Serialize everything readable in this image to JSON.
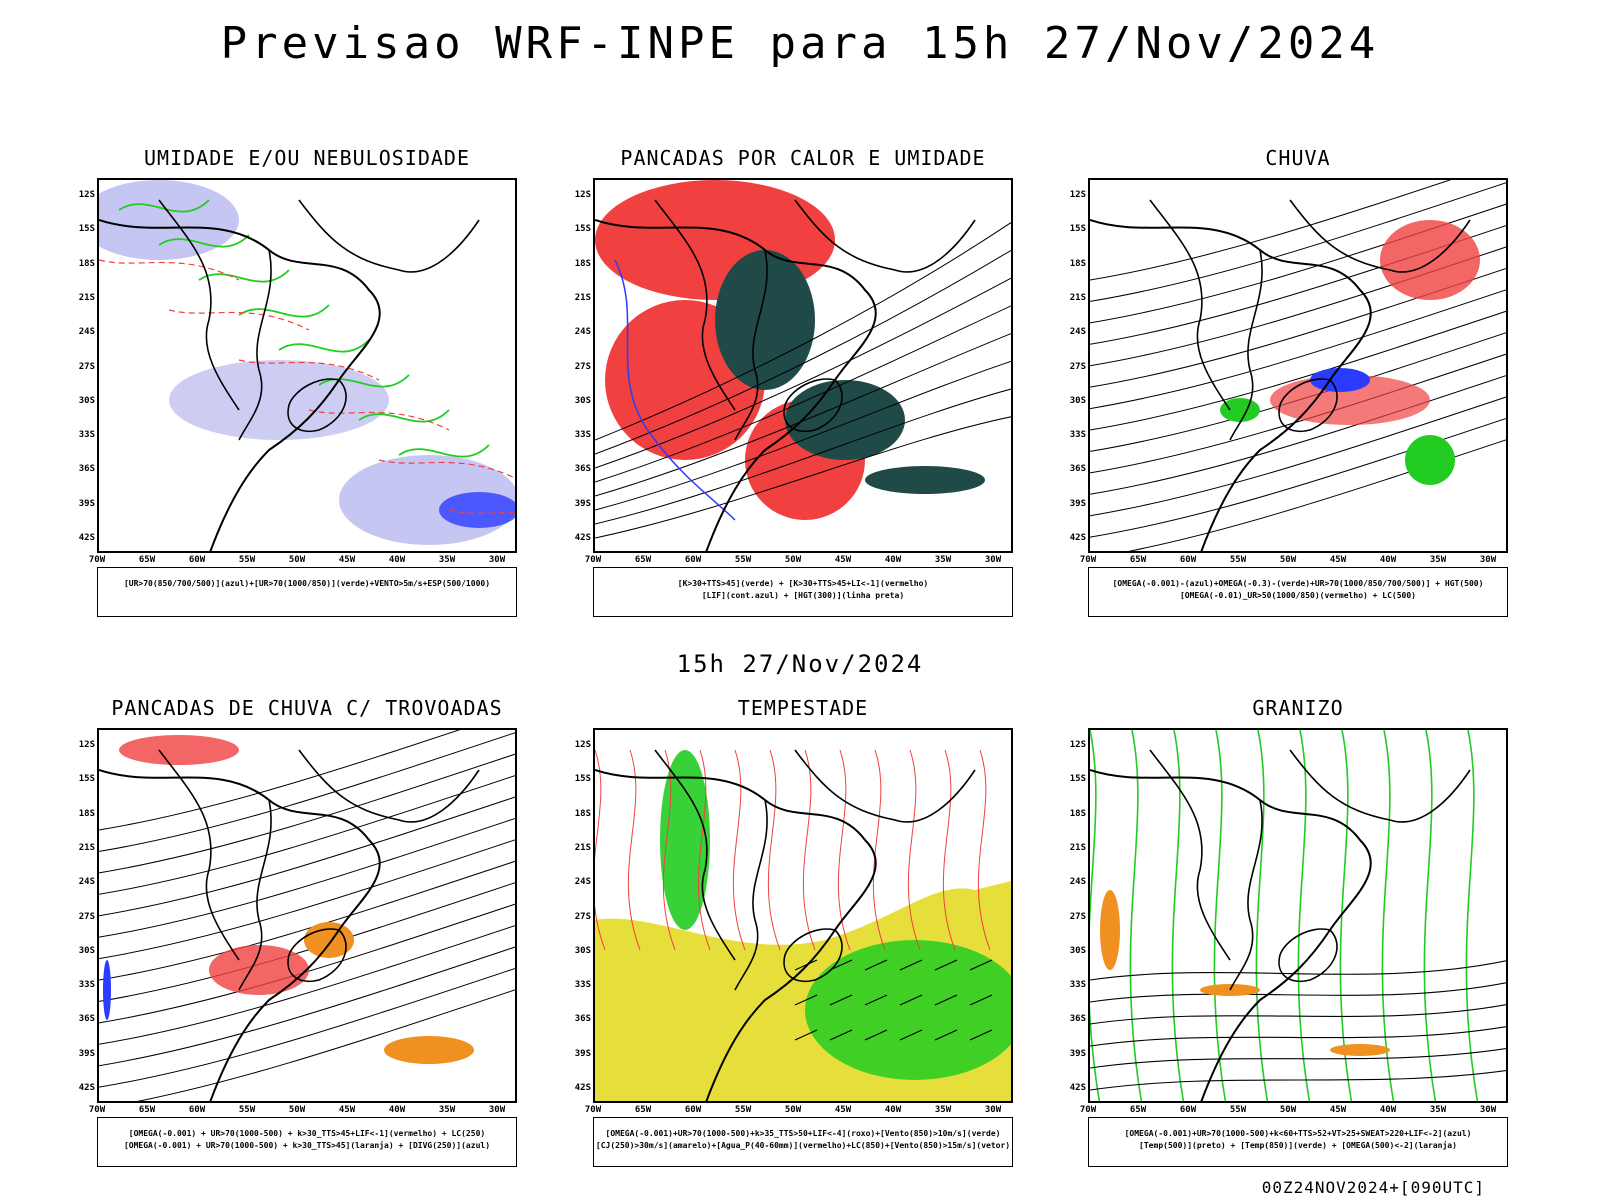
{
  "header": {
    "title": "Previsao WRF-INPE  para 15h 27/Nov/2024"
  },
  "mid_title": "15h 27/Nov/2024",
  "footer": "00Z24NOV2024+[090UTC]",
  "axes": {
    "lat_labels": [
      "12S",
      "15S",
      "18S",
      "21S",
      "24S",
      "27S",
      "30S",
      "33S",
      "36S",
      "39S",
      "42S"
    ],
    "lon_labels": [
      "70W",
      "65W",
      "60W",
      "55W",
      "50W",
      "45W",
      "40W",
      "35W",
      "30W"
    ]
  },
  "colors": {
    "red": "#f04040",
    "green": "#22cc22",
    "blue": "#2a3cff",
    "lavender": "#b8b8f0",
    "darkteal": "#1f4a48",
    "yellow": "#e6de3a",
    "orange": "#f09020"
  },
  "panels": [
    {
      "title": "UMIDADE E/OU NEBULOSIDADE",
      "legend": [
        "[UR>70(850/700/500)](azul)+[UR>70(1000/850)](verde)+VENTO>5m/s+ESP(500/1000)"
      ]
    },
    {
      "title": "PANCADAS POR CALOR E UMIDADE",
      "legend": [
        "[K>30+TTS>45](verde) + [K>30+TTS>45+LI<-1](vermelho)",
        "[LIF](cont.azul) + [HGT(300)](linha preta)"
      ]
    },
    {
      "title": "CHUVA",
      "legend": [
        "[OMEGA(-0.001)-(azul)+OMEGA(-0.3)-(verde)+UR>70(1000/850/700/500)] + HGT(500)",
        "[OMEGA(-0.01)_UR>50(1000/850)(vermelho) + LC(500)"
      ]
    },
    {
      "title": "PANCADAS DE CHUVA C/ TROVOADAS",
      "legend": [
        "[OMEGA(-0.001) + UR>70(1000-500) + k>30_TTS>45+LIF<-1](vermelho) + LC(250)",
        "[OMEGA(-0.001) + UR>70(1000-500) + k>30_TTS>45](laranja) + [DIVG(250)](azul)"
      ]
    },
    {
      "title": "TEMPESTADE",
      "legend": [
        "[OMEGA(-0.001)+UR>70(1000-500)+k>35_TTS>50+LIF<-4](roxo)+[Vento(850)>10m/s](verde)",
        "[CJ(250)>30m/s](amarelo)+[Agua_P(40-60mm)](vermelho)+LC(850)+[Vento(850)>15m/s](vetor)"
      ]
    },
    {
      "title": "GRANIZO",
      "legend": [
        "[OMEGA(-0.001)+UR>70(1000-500)+k<60+TTS>52+VT>25+SWEAT>220+LIF<-2](azul)",
        "[Temp(500)](preto) + [Temp(850)](verde) + [OMEGA(500)<-2](laranja)"
      ]
    }
  ]
}
